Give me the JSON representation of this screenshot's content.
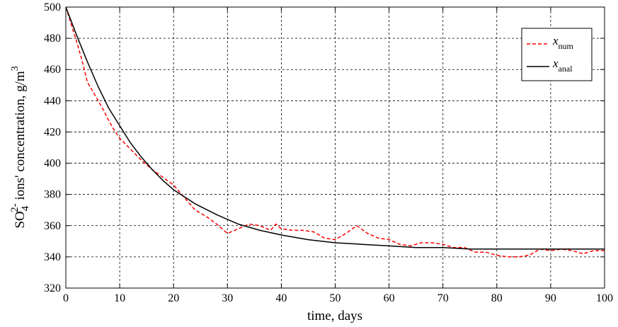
{
  "chart_data": {
    "type": "line",
    "xlabel": "time, days",
    "ylabel": {
      "prefix": "SO",
      "sub": "4",
      "sup": "2-",
      "rest": " ions' concentration, g/m",
      "unit_sup": "3"
    },
    "xlim": [
      0,
      100
    ],
    "ylim": [
      320,
      500
    ],
    "xticks": [
      0,
      10,
      20,
      30,
      40,
      50,
      60,
      70,
      80,
      90,
      100
    ],
    "yticks": [
      320,
      340,
      360,
      380,
      400,
      420,
      440,
      460,
      480,
      500
    ],
    "grid": true,
    "legend_position": "top-right",
    "series": [
      {
        "name": "x_num",
        "label_main": "x",
        "label_sub": "num",
        "color": "#ff0000",
        "style": "dashed",
        "x": [
          0,
          1,
          2,
          3,
          4,
          5,
          6,
          7,
          8,
          9,
          10,
          12,
          14,
          16,
          18,
          20,
          22,
          24,
          26,
          28,
          30,
          32,
          34,
          36,
          38,
          39,
          40,
          42,
          44,
          46,
          48,
          50,
          52,
          54,
          56,
          58,
          60,
          62,
          64,
          66,
          68,
          70,
          72,
          74,
          76,
          78,
          80,
          82,
          84,
          86,
          88,
          90,
          92,
          94,
          96,
          98,
          100
        ],
        "y": [
          500,
          489,
          478,
          466,
          452,
          446,
          440,
          434,
          427,
          421,
          416,
          409,
          402,
          396,
          391,
          386,
          378,
          370,
          366,
          361,
          355,
          358,
          361,
          360,
          357,
          361,
          358,
          357,
          357,
          356,
          352,
          351,
          355,
          360,
          355,
          352,
          351,
          348,
          347,
          349,
          349,
          348,
          346,
          346,
          343,
          343,
          341,
          340,
          340,
          341,
          345,
          344,
          345,
          344,
          342,
          344,
          344
        ]
      },
      {
        "name": "x_anal",
        "label_main": "x",
        "label_sub": "anal",
        "color": "#000000",
        "style": "solid",
        "x": [
          0,
          2,
          4,
          6,
          8,
          10,
          12,
          14,
          16,
          18,
          20,
          24,
          28,
          32,
          36,
          40,
          45,
          50,
          55,
          60,
          65,
          70,
          75,
          80,
          85,
          90,
          95,
          100
        ],
        "y": [
          500,
          482,
          465,
          449,
          435,
          424,
          413,
          404,
          396,
          389,
          383,
          374,
          367,
          361,
          357,
          354,
          351,
          349,
          348,
          347,
          346,
          346,
          345,
          345,
          345,
          345,
          345,
          345
        ]
      }
    ]
  }
}
